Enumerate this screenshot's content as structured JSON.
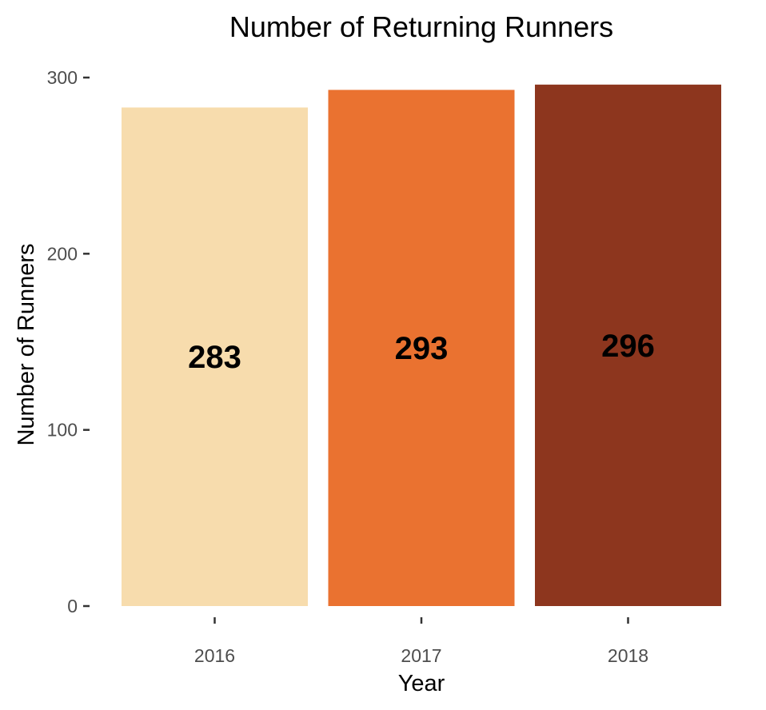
{
  "chart_data": {
    "type": "bar",
    "title": "Number of Returning Runners",
    "xlabel": "Year",
    "ylabel": "Number of Runners",
    "categories": [
      "2016",
      "2017",
      "2018"
    ],
    "values": [
      283,
      293,
      296
    ],
    "data_labels": [
      "283",
      "293",
      "296"
    ],
    "colors": [
      "#f7dcad",
      "#ea7230",
      "#8d361e"
    ],
    "ylim": [
      0,
      300
    ],
    "yticks": [
      0,
      100,
      200,
      300
    ],
    "ytick_labels": [
      "0",
      "100",
      "200",
      "300"
    ],
    "grid": false,
    "legend": "none"
  }
}
